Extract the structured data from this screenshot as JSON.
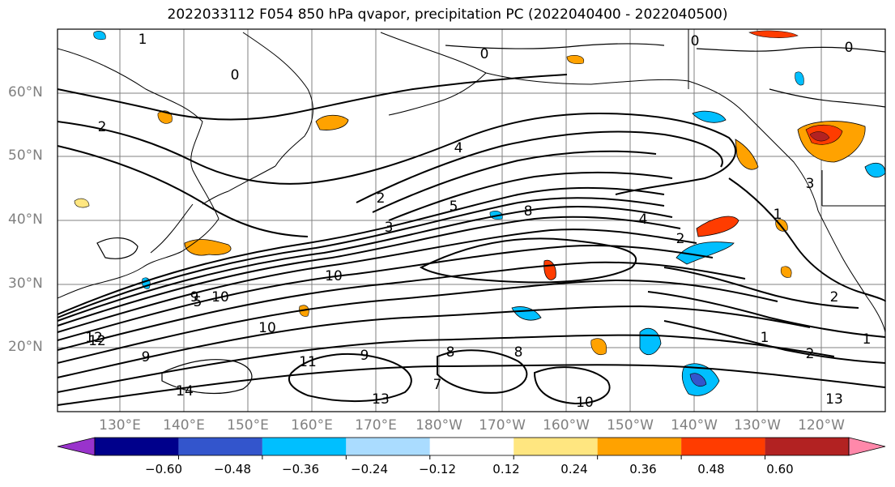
{
  "title": "2022033112 F054 850 hPa qvapor, precipitation PC (2022040400 - 2022040500)",
  "map": {
    "lat_labels": [
      "60°N",
      "50°N",
      "40°N",
      "30°N",
      "20°N"
    ],
    "lon_labels": [
      "130°E",
      "140°E",
      "150°E",
      "160°E",
      "170°E",
      "180°W",
      "170°W",
      "160°W",
      "150°W",
      "140°W",
      "130°W",
      "120°W"
    ],
    "contour_labels": [
      "1",
      "0",
      "2",
      "2",
      "0",
      "3",
      "4",
      "5",
      "8",
      "10",
      "9",
      "10",
      "12",
      "13",
      "14",
      "11",
      "8",
      "10",
      "9",
      "8",
      "10",
      "13",
      "1",
      "2",
      "1",
      "0",
      "2",
      "3",
      "4",
      "0",
      "1",
      "2",
      "5",
      "7",
      "9",
      "12"
    ],
    "colors": {
      "coastline": "#000000",
      "grid": "#808080",
      "contour": "#000000",
      "positive_small": "#ffe680",
      "positive_mid": "#ffa200",
      "positive_high": "#ff3c00",
      "negative_small": "#aadcff",
      "negative_mid": "#00bfff",
      "negative_high": "#3355cc"
    }
  },
  "colorbar": {
    "colors": [
      "#9933cc",
      "#00008b",
      "#3355cc",
      "#00bfff",
      "#aadcff",
      "#ffffff",
      "#ffe680",
      "#ffa200",
      "#ff3c00",
      "#b22222",
      "#ff88aa"
    ],
    "ticks": [
      "−0.60",
      "−0.48",
      "−0.36",
      "−0.24",
      "−0.12",
      "0.12",
      "0.24",
      "0.36",
      "0.48",
      "0.60"
    ]
  }
}
